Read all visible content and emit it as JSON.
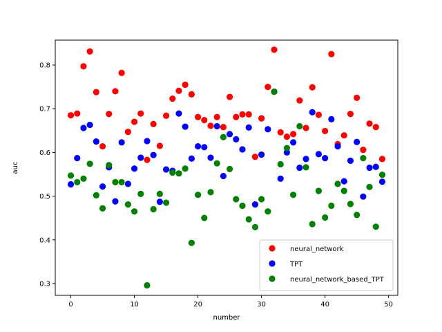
{
  "chart_data": {
    "type": "scatter",
    "title": "",
    "xlabel": "number",
    "ylabel": "auc",
    "xlim": [
      -2.45,
      51.45
    ],
    "ylim": [
      0.273,
      0.857
    ],
    "xticks": [
      0,
      10,
      20,
      30,
      40,
      50
    ],
    "yticks": [
      0.3,
      0.4,
      0.5,
      0.6,
      0.7,
      0.8
    ],
    "xtick_labels": [
      "0",
      "10",
      "20",
      "30",
      "40",
      "50"
    ],
    "ytick_labels": [
      "0.3",
      "0.4",
      "0.5",
      "0.6",
      "0.7",
      "0.8"
    ],
    "grid": false,
    "legend_position": "lower-right",
    "x": [
      0,
      1,
      2,
      3,
      4,
      5,
      6,
      7,
      8,
      9,
      10,
      11,
      12,
      13,
      14,
      15,
      16,
      17,
      18,
      19,
      20,
      21,
      22,
      23,
      24,
      25,
      26,
      27,
      28,
      29,
      30,
      31,
      32,
      33,
      34,
      35,
      36,
      37,
      38,
      39,
      40,
      41,
      42,
      43,
      44,
      45,
      46,
      47,
      48,
      49
    ],
    "series": [
      {
        "name": "neural_network",
        "color": "#ff0000",
        "values": [
          0.685,
          0.689,
          0.797,
          0.831,
          0.738,
          0.614,
          0.688,
          0.74,
          0.782,
          0.647,
          0.67,
          0.689,
          0.583,
          0.665,
          0.615,
          0.684,
          0.723,
          0.741,
          0.755,
          0.733,
          0.681,
          0.674,
          0.661,
          0.681,
          0.658,
          0.727,
          0.681,
          0.687,
          0.687,
          0.59,
          0.678,
          0.75,
          0.835,
          0.646,
          0.636,
          0.642,
          0.719,
          0.656,
          0.749,
          0.686,
          0.649,
          0.825,
          0.619,
          0.639,
          0.688,
          0.725,
          0.606,
          0.666,
          0.658,
          0.585
        ]
      },
      {
        "name": "TPT",
        "color": "#0000ff",
        "values": [
          0.527,
          0.587,
          0.656,
          0.663,
          0.625,
          0.522,
          0.566,
          0.488,
          0.623,
          0.528,
          0.563,
          0.588,
          0.626,
          0.594,
          0.487,
          0.561,
          0.558,
          0.689,
          0.659,
          0.586,
          0.614,
          0.612,
          0.588,
          0.66,
          0.546,
          0.642,
          0.63,
          0.607,
          0.657,
          0.481,
          0.595,
          0.653,
          0.739,
          0.54,
          0.6,
          0.623,
          0.565,
          0.585,
          0.692,
          0.596,
          0.587,
          0.676,
          0.614,
          0.534,
          0.581,
          0.624,
          0.499,
          0.565,
          0.567,
          0.533
        ]
      },
      {
        "name": "neural_network_based_TPT",
        "color": "#008000",
        "values": [
          0.547,
          0.532,
          0.54,
          0.574,
          0.502,
          0.472,
          0.571,
          0.532,
          0.532,
          0.481,
          0.465,
          0.505,
          0.296,
          0.47,
          0.505,
          0.485,
          0.554,
          0.552,
          0.563,
          0.393,
          0.503,
          0.45,
          0.509,
          0.575,
          0.635,
          0.562,
          0.493,
          0.478,
          0.447,
          0.429,
          0.493,
          0.465,
          0.739,
          0.573,
          0.61,
          0.503,
          0.66,
          0.566,
          0.436,
          0.512,
          0.451,
          0.478,
          0.528,
          0.512,
          0.482,
          0.457,
          0.587,
          0.521,
          0.43,
          0.549
        ]
      }
    ]
  }
}
